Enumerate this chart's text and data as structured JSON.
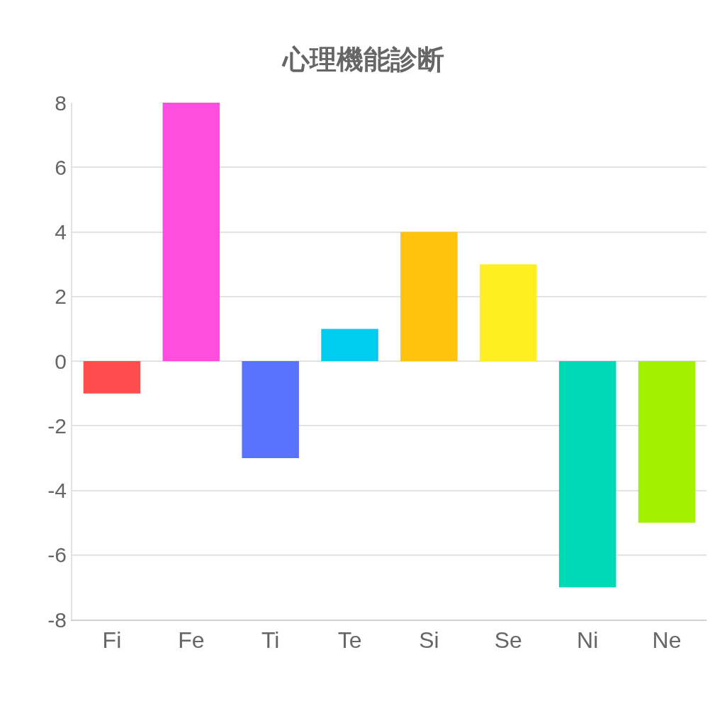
{
  "chart_data": {
    "type": "bar",
    "title": "心理機能診断",
    "categories": [
      "Fi",
      "Fe",
      "Ti",
      "Te",
      "Si",
      "Se",
      "Ni",
      "Ne"
    ],
    "values": [
      -1,
      8,
      -3,
      1,
      4,
      3,
      -7,
      -5
    ],
    "colors": [
      "#ff4d4d",
      "#ff4de0",
      "#5a73ff",
      "#00ccf0",
      "#ffc20e",
      "#ffee22",
      "#00d9b5",
      "#a3f000"
    ],
    "ylim": [
      -8,
      8
    ],
    "yticks": [
      -8,
      -6,
      -4,
      -2,
      0,
      2,
      4,
      6,
      8
    ],
    "grid": "y",
    "legend": false
  }
}
